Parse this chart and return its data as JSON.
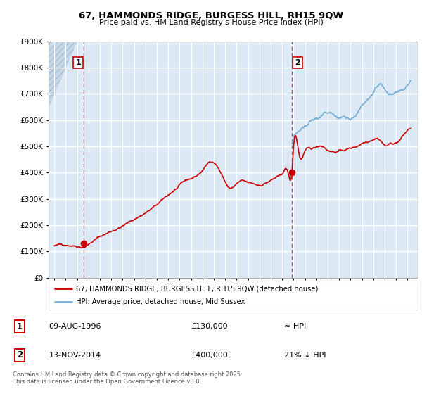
{
  "title_line1": "67, HAMMONDS RIDGE, BURGESS HILL, RH15 9QW",
  "title_line2": "Price paid vs. HM Land Registry's House Price Index (HPI)",
  "ylim": [
    0,
    900000
  ],
  "yticks": [
    0,
    100000,
    200000,
    300000,
    400000,
    500000,
    600000,
    700000,
    800000,
    900000
  ],
  "ytick_labels": [
    "£0",
    "£100K",
    "£200K",
    "£300K",
    "£400K",
    "£500K",
    "£600K",
    "£700K",
    "£800K",
    "£900K"
  ],
  "sale1_date": 1996.6,
  "sale1_price": 130000,
  "sale2_date": 2014.87,
  "sale2_price": 400000,
  "sale1_label": "1",
  "sale2_label": "2",
  "red_color": "#cc0000",
  "blue_color": "#7ab0d4",
  "dashed_color": "#cc3333",
  "legend_label1": "67, HAMMONDS RIDGE, BURGESS HILL, RH15 9QW (detached house)",
  "legend_label2": "HPI: Average price, detached house, Mid Sussex",
  "table_row1": [
    "1",
    "09-AUG-1996",
    "£130,000",
    "≈ HPI"
  ],
  "table_row2": [
    "2",
    "13-NOV-2014",
    "£400,000",
    "21% ↓ HPI"
  ],
  "footnote": "Contains HM Land Registry data © Crown copyright and database right 2025.\nThis data is licensed under the Open Government Licence v3.0.",
  "plot_bg_color": "#dce9f5",
  "hatch_left_color": "#c8d8e8",
  "xlim_left": 1993.5,
  "xlim_right": 2025.9,
  "xstart": 1994
}
